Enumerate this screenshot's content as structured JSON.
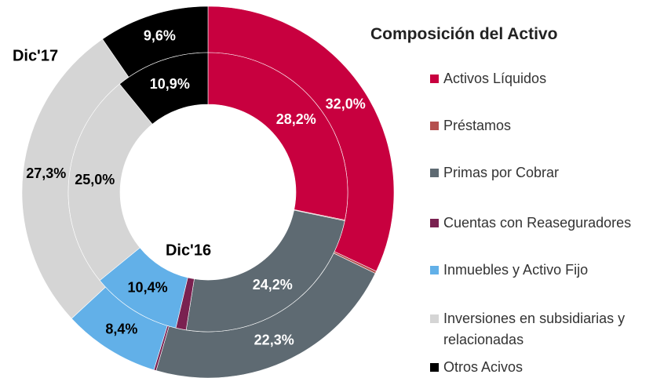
{
  "chart_data": {
    "type": "donut",
    "title": "Composición del Activo",
    "categories": [
      "Activos Líquidos",
      "Préstamos",
      "Primas por Cobrar",
      "Cuentas con Reaseguradores",
      "Inmuebles y Activo Fijo",
      "Inversiones en subsidiarias y relacionadas",
      "Otros Acivos"
    ],
    "colors": [
      "#c8003f",
      "#b5504f",
      "#5e6a72",
      "#7a2150",
      "#62b0e8",
      "#d5d5d5",
      "#000000"
    ],
    "series": [
      {
        "name": "Dic'17",
        "values": [
          32.0,
          0.2,
          22.3,
          0.2,
          8.4,
          27.3,
          9.6
        ],
        "value_labels": [
          "32,0%",
          null,
          "22,3%",
          null,
          "8,4%",
          "27,3%",
          "9,6%"
        ]
      },
      {
        "name": "Dic'16",
        "values": [
          28.2,
          0.1,
          24.2,
          1.2,
          10.4,
          25.0,
          10.9
        ],
        "value_labels": [
          "28,2%",
          null,
          "24,2%",
          null,
          "10,4%",
          "25,0%",
          "10,9%"
        ]
      }
    ]
  }
}
